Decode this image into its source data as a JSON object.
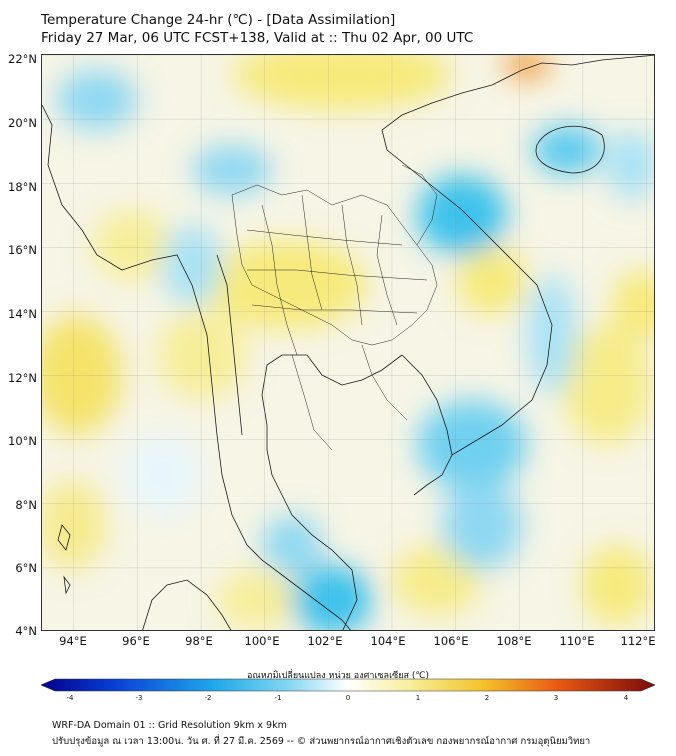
{
  "title": {
    "line1": "Temperature Change 24-hr (℃) - [Data Assimilation]",
    "line2": "Friday 27 Mar, 06 UTC FCST+138, Valid at :: Thu 02 Apr, 00 UTC"
  },
  "map": {
    "lat_labels": [
      "22°N",
      "20°N",
      "18°N",
      "16°N",
      "14°N",
      "12°N",
      "10°N",
      "8°N",
      "6°N",
      "4°N"
    ],
    "lon_labels": [
      "94°E",
      "96°E",
      "98°E",
      "100°E",
      "102°E",
      "104°E",
      "106°E",
      "108°E",
      "110°E",
      "112°E"
    ],
    "lat_range": [
      4,
      22
    ],
    "lon_range": [
      93,
      112.3
    ]
  },
  "colorbar": {
    "title": "อุณหภูมิเปลี่ยนแปลง หน่วย องศาเซลเซียส (℃)",
    "ticks": [
      "-4",
      "-3",
      "-2",
      "-1",
      "0",
      "1",
      "2",
      "3",
      "4"
    ],
    "range": [
      -4,
      4
    ]
  },
  "footer": {
    "line1": "WRF-DA Domain 01 :: Grid Resolution 9km x 9km",
    "line2": "ปรับปรุงข้อมูล ณ เวลา 13:00น. วัน ศ. ที่ 27 มี.ค. 2569 -- © ส่วนพยากรณ์อากาศเชิงตัวเลข กองพยากรณ์อากาศ กรมอุตุนิยมวิทยา"
  },
  "colors": {
    "cold": "#3ec2ec",
    "cool": "#a9e2f5",
    "neutral": "#f7f7ef",
    "warm": "#f7ec7a",
    "hot": "#f08a1e",
    "coast": "#1a1a1a"
  }
}
